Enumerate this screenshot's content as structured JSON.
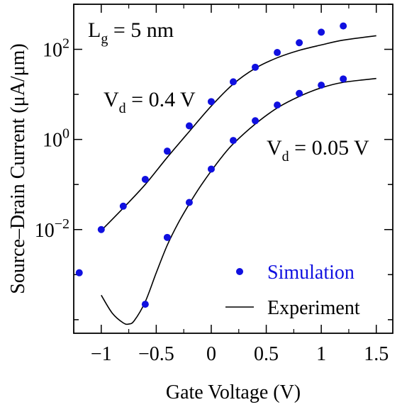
{
  "chart_data": {
    "type": "scatter",
    "xlabel": "Gate Voltage (V)",
    "ylabel": "Source–Drain Current (μA/μm)",
    "xlim": [
      -1.25,
      1.65
    ],
    "ylim": [
      5e-05,
      1000
    ],
    "y_scale": "log",
    "x_ticks": [
      {
        "value": -1,
        "label": "−1"
      },
      {
        "value": -0.5,
        "label": "−0.5"
      },
      {
        "value": 0,
        "label": "0"
      },
      {
        "value": 0.5,
        "label": "0.5"
      },
      {
        "value": 1,
        "label": "1"
      },
      {
        "value": 1.5,
        "label": "1.5"
      }
    ],
    "y_ticks": [
      {
        "value": 0.01,
        "base": "10",
        "exp": "−2"
      },
      {
        "value": 1,
        "base": "10",
        "exp": "0"
      },
      {
        "value": 100,
        "base": "10",
        "exp": "2"
      }
    ],
    "annotations": {
      "gate_length": {
        "main": "L",
        "sub": "g",
        "rest": " = 5 nm"
      },
      "vd_high": {
        "main": "V",
        "sub": "d",
        "rest": " = 0.4 V"
      },
      "vd_low": {
        "main": "V",
        "sub": "d",
        "rest": " = 0.05 V"
      }
    },
    "legend": {
      "placement": "bottom-right",
      "simulation_label": "Simulation",
      "experiment_label": "Experiment"
    },
    "series": [
      {
        "name": "Simulation",
        "condition": "Vd = 0.4 V",
        "kind": "points",
        "color": "#1010e0",
        "x": [
          -1.2,
          -1.0,
          -0.8,
          -0.6,
          -0.4,
          -0.2,
          0.0,
          0.2,
          0.4,
          0.6,
          0.8,
          1.0,
          1.2
        ],
        "y": [
          0.0011,
          0.01,
          0.033,
          0.13,
          0.55,
          2.0,
          6.9,
          19,
          40,
          85,
          140,
          240,
          330
        ]
      },
      {
        "name": "Simulation",
        "condition": "Vd = 0.05 V",
        "kind": "points",
        "color": "#1010e0",
        "x": [
          -0.6,
          -0.4,
          -0.2,
          0.0,
          0.2,
          0.4,
          0.6,
          0.8,
          1.0,
          1.2
        ],
        "y": [
          0.00022,
          0.0067,
          0.04,
          0.22,
          0.95,
          2.6,
          5.8,
          10.5,
          16,
          22
        ]
      },
      {
        "name": "Experiment",
        "condition": "Vd = 0.4 V",
        "kind": "line",
        "color": "#000000",
        "x": [
          -1.0,
          -0.8,
          -0.6,
          -0.4,
          -0.2,
          0.0,
          0.2,
          0.4,
          0.6,
          0.8,
          1.0,
          1.2,
          1.5
        ],
        "y": [
          0.0095,
          0.03,
          0.1,
          0.4,
          1.5,
          5.5,
          17,
          38,
          65,
          95,
          125,
          160,
          200
        ]
      },
      {
        "name": "Experiment",
        "condition": "Vd = 0.05 V",
        "kind": "line",
        "color": "#000000",
        "x": [
          -1.0,
          -0.9,
          -0.8,
          -0.75,
          -0.7,
          -0.6,
          -0.5,
          -0.4,
          -0.3,
          -0.2,
          -0.1,
          0.0,
          0.1,
          0.2,
          0.4,
          0.6,
          0.8,
          1.0,
          1.2,
          1.5
        ],
        "y": [
          0.00035,
          0.00014,
          8.5e-05,
          8e-05,
          9.5e-05,
          0.00025,
          0.0011,
          0.0045,
          0.014,
          0.037,
          0.09,
          0.2,
          0.42,
          0.8,
          2.2,
          5.0,
          9.0,
          14,
          18.5,
          22.5
        ]
      }
    ]
  }
}
